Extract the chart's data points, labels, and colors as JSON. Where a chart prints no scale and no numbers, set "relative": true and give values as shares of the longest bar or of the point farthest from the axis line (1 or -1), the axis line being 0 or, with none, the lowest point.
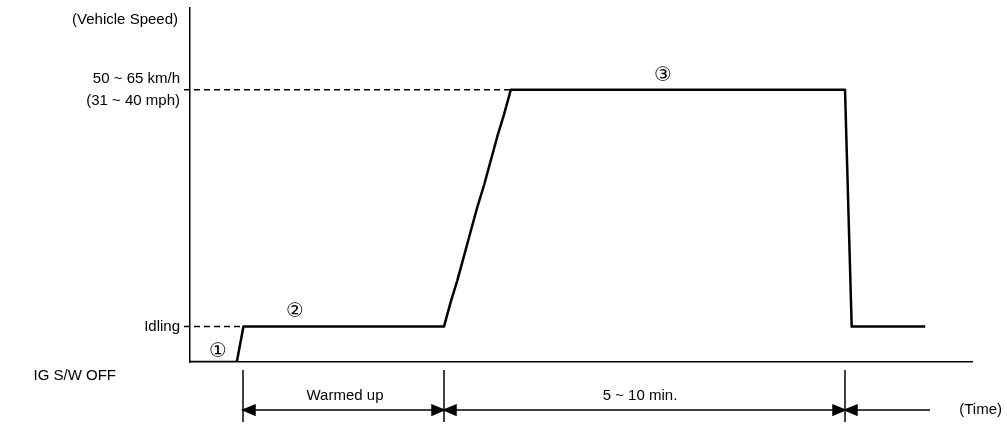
{
  "chart_data": {
    "type": "line",
    "relative": true,
    "ylabel": "(Vehicle Speed)",
    "xlabel": "(Time)",
    "categories": [
      null,
      null,
      null,
      null,
      null,
      null,
      null,
      null,
      null,
      null,
      null,
      null,
      null,
      null,
      null,
      null,
      null,
      null,
      null,
      null,
      null,
      null,
      null,
      null,
      null,
      null,
      null,
      null,
      null,
      null,
      null,
      null,
      null,
      null,
      null,
      null,
      null,
      null,
      null,
      null,
      null,
      null,
      null,
      null,
      null,
      null,
      null,
      null,
      null,
      null,
      null,
      null,
      null,
      null,
      null,
      null,
      null,
      null,
      null,
      null,
      null,
      null,
      null,
      null,
      null,
      null,
      null,
      null,
      null,
      null,
      null,
      null,
      null,
      null,
      null,
      null,
      null,
      null,
      null,
      null,
      null,
      null,
      null,
      null,
      null,
      null,
      null,
      null,
      null,
      null,
      null,
      null,
      null,
      null,
      null,
      null,
      null,
      null,
      null,
      null,
      null,
      null,
      null,
      null,
      null,
      null,
      null,
      null,
      null,
      null,
      null,
      null,
      null,
      null,
      null,
      null,
      null,
      null
    ],
    "series": [
      {
        "color": "#000000",
        "values": [
          0,
          0,
          0,
          0,
          0,
          0,
          0,
          0,
          0.13,
          0.13,
          0.13,
          0.13,
          0.13,
          0.13,
          0.13,
          0.13,
          0.13,
          0.13,
          0.13,
          0.13,
          0.13,
          0.13,
          0.13,
          0.13,
          0.13,
          0.13,
          0.13,
          0.13,
          0.13,
          0.13,
          0.13,
          0.13,
          0.13,
          0.13,
          0.13,
          0.13,
          0.13,
          0.13,
          0.13,
          0.22,
          0.3,
          0.39,
          0.48,
          0.57,
          0.65,
          0.74,
          0.83,
          0.91,
          1,
          1,
          1,
          1,
          1,
          1,
          1,
          1,
          1,
          1,
          1,
          1,
          1,
          1,
          1,
          1,
          1,
          1,
          1,
          1,
          1,
          1,
          1,
          1,
          1,
          1,
          1,
          1,
          1,
          1,
          1,
          1,
          1,
          1,
          1,
          1,
          1,
          1,
          1,
          1,
          1,
          1,
          1,
          1,
          1,
          1,
          1,
          1,
          1,
          1,
          1,
          0.13,
          0.13,
          0.13,
          0.13,
          0.13,
          0.13,
          0.13,
          0.13,
          0.13,
          0.13,
          0.13,
          0.13,
          null,
          null,
          null,
          null,
          null,
          null,
          null
        ]
      }
    ],
    "legend": false,
    "marker": "none",
    "line_style": "solid",
    "ref_lines": [
      {
        "axis": "y",
        "value": 0.13,
        "label": "Idling",
        "line_style": "dashed",
        "color": "#000000"
      },
      {
        "axis": "y",
        "value": 1,
        "label": "50 ~ 65 km/h\n(31 ~ 40 mph)",
        "line_style": "dashed",
        "color": "#000000"
      }
    ],
    "annotations": [
      "①",
      "②",
      "③",
      "Warmed up",
      "5 ~ 10 min.",
      "IG S/W OFF"
    ]
  }
}
